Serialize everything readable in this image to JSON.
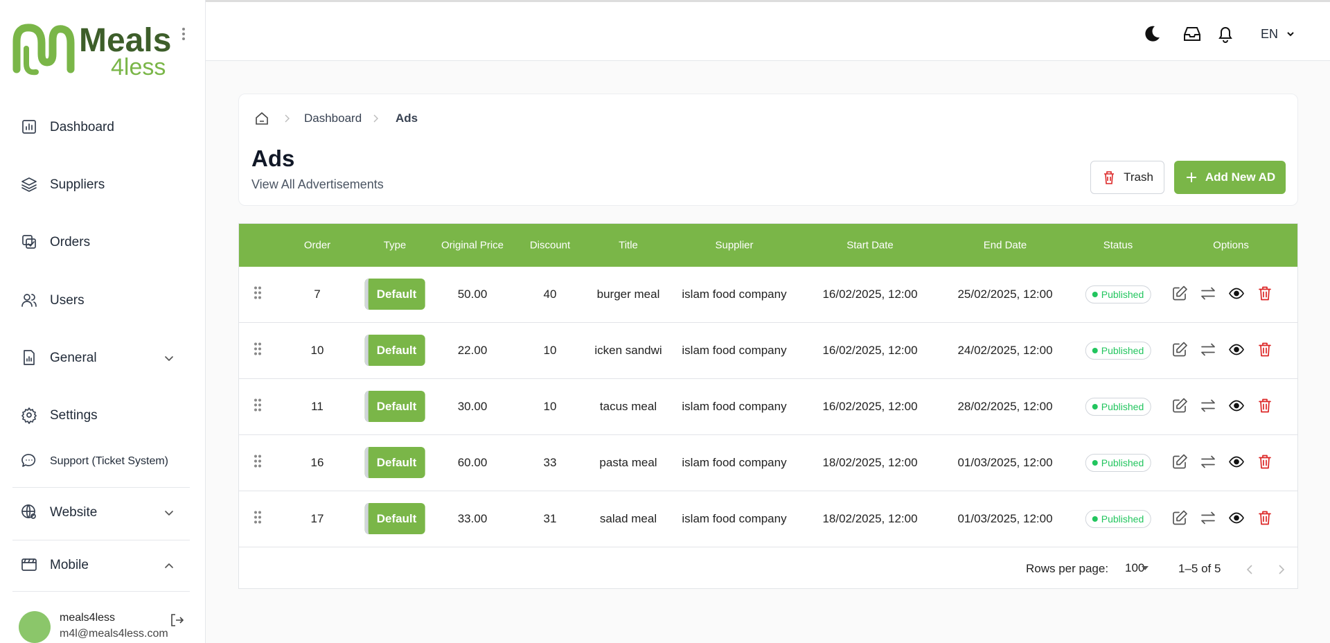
{
  "sidebar": {
    "logo": {
      "line1": "Meals",
      "line2": "4less"
    },
    "nav": [
      {
        "label": "Dashboard"
      },
      {
        "label": "Suppliers"
      },
      {
        "label": "Orders"
      },
      {
        "label": "Users"
      },
      {
        "label": "General"
      },
      {
        "label": "Settings"
      },
      {
        "label": "Support (Ticket System)"
      },
      {
        "label": "Website"
      },
      {
        "label": "Mobile"
      }
    ],
    "user": {
      "name": "meals4less",
      "email": "m4l@meals4less.com"
    }
  },
  "header": {
    "language": "EN"
  },
  "breadcrumb": [
    "Dashboard",
    "Ads"
  ],
  "page": {
    "title": "Ads",
    "subtitle": "View All Advertisements"
  },
  "buttons": {
    "trash": "Trash",
    "add": "Add New AD"
  },
  "table": {
    "columns": [
      "Order",
      "Type",
      "Original Price",
      "Discount",
      "Title",
      "Supplier",
      "Start Date",
      "End Date",
      "Status",
      "Options"
    ],
    "rows": [
      [
        7,
        "Default",
        "50.00",
        40,
        "burger meal",
        "islam food company",
        "16/02/2025, 12:00",
        "25/02/2025, 12:00",
        "Published"
      ],
      [
        10,
        "Default",
        "22.00",
        10,
        "icken sandwi",
        "islam food company",
        "16/02/2025, 12:00",
        "24/02/2025, 12:00",
        "Published"
      ],
      [
        11,
        "Default",
        "30.00",
        10,
        "tacus meal",
        "islam food company",
        "16/02/2025, 12:00",
        "28/02/2025, 12:00",
        "Published"
      ],
      [
        16,
        "Default",
        "60.00",
        33,
        "pasta meal",
        "islam food company",
        "18/02/2025, 12:00",
        "01/03/2025, 12:00",
        "Published"
      ],
      [
        17,
        "Default",
        "33.00",
        31,
        "salad meal",
        "islam food company",
        "18/02/2025, 12:00",
        "01/03/2025, 12:00",
        "Published"
      ]
    ]
  },
  "pagination": {
    "rows_per_page_label": "Rows per page:",
    "rows_per_page": 100,
    "range": "1–5 of 5"
  }
}
